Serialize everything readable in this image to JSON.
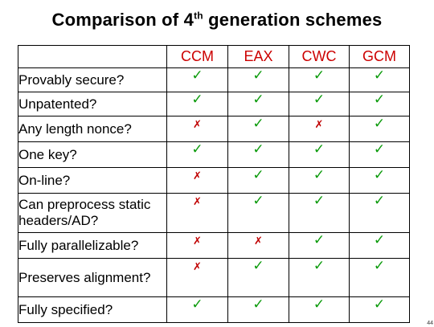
{
  "title": {
    "before": "Comparison of 4",
    "sup": "th",
    "after": " generation schemes"
  },
  "columns": [
    "CCM",
    "EAX",
    "CWC",
    "GCM"
  ],
  "rows": [
    {
      "label": "Provably secure?",
      "values": [
        "yes",
        "yes",
        "yes",
        "yes"
      ]
    },
    {
      "label": "Unpatented?",
      "values": [
        "yes",
        "yes",
        "yes",
        "yes"
      ]
    },
    {
      "label": "Any length nonce?",
      "values": [
        "no",
        "yes",
        "no",
        "yes"
      ]
    },
    {
      "label": "One key?",
      "values": [
        "yes",
        "yes",
        "yes",
        "yes"
      ]
    },
    {
      "label": "On-line?",
      "values": [
        "no",
        "yes",
        "yes",
        "yes"
      ]
    },
    {
      "label": "Can preprocess static headers/AD?",
      "values": [
        "no",
        "yes",
        "yes",
        "yes"
      ]
    },
    {
      "label": "Fully parallelizable?",
      "values": [
        "no",
        "no",
        "yes",
        "yes"
      ]
    },
    {
      "label": "Preserves alignment?",
      "values": [
        "no",
        "yes",
        "yes",
        "yes"
      ]
    },
    {
      "label": "Fully specified?",
      "values": [
        "yes",
        "yes",
        "yes",
        "yes"
      ]
    }
  ],
  "marks": {
    "yes": "✓",
    "no": "✗"
  },
  "colors": {
    "header": "#cc0000",
    "check": "#0a9a0a",
    "cross": "#c00000"
  },
  "page_number": "44"
}
